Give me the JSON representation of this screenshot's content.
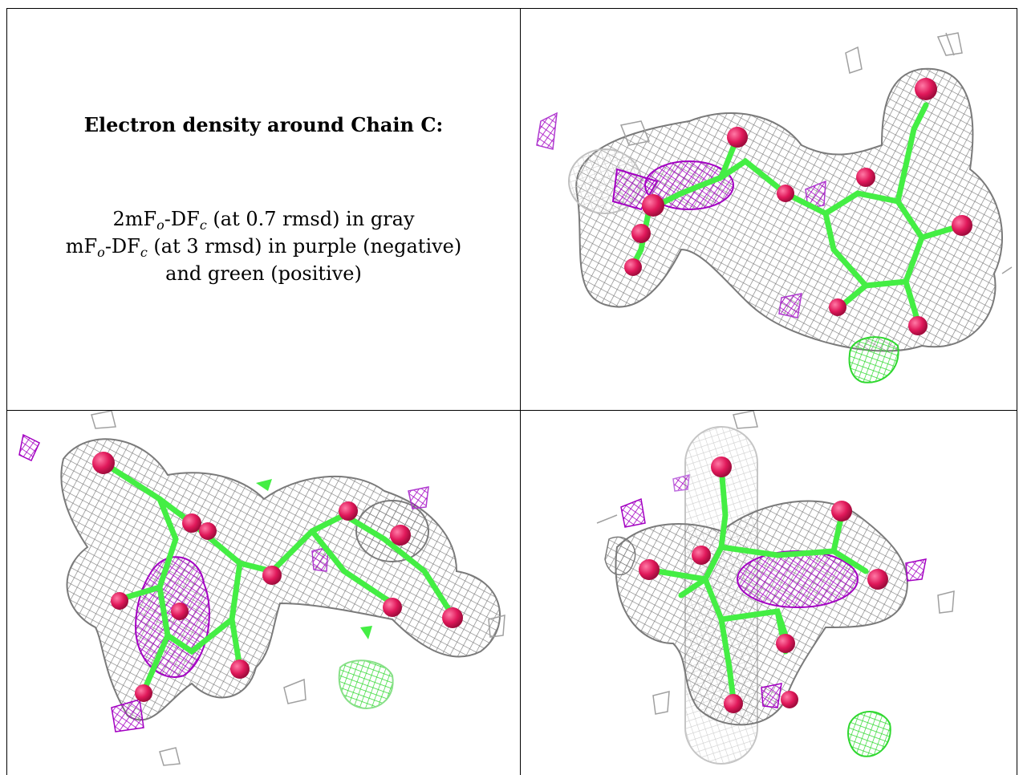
{
  "caption": {
    "title": "Electron density around Chain C:",
    "line1": {
      "a": "2mF",
      "sub1": "o",
      "b": "-DF",
      "sub2": "c",
      "c": " (at 0.7 rmsd) in gray"
    },
    "line2": {
      "a": "mF",
      "sub1": "o",
      "b": "-DF",
      "sub2": "c",
      "c": " (at 3 rmsd) in purple (negative)"
    },
    "line3": "and green (positive)"
  },
  "colors": {
    "mesh_2fofc": "#7a7a7a",
    "mesh_2fofc_light": "#c8c8c8",
    "mesh_negative": "#b000c8",
    "mesh_positive": "#33dd33",
    "carbon_bonds": "#44ee44",
    "oxygen_atoms": "#e0185a"
  },
  "panels": [
    {
      "name": "view-1",
      "position": "top-right"
    },
    {
      "name": "view-2",
      "position": "bottom-left"
    },
    {
      "name": "view-3",
      "position": "bottom-right"
    }
  ]
}
